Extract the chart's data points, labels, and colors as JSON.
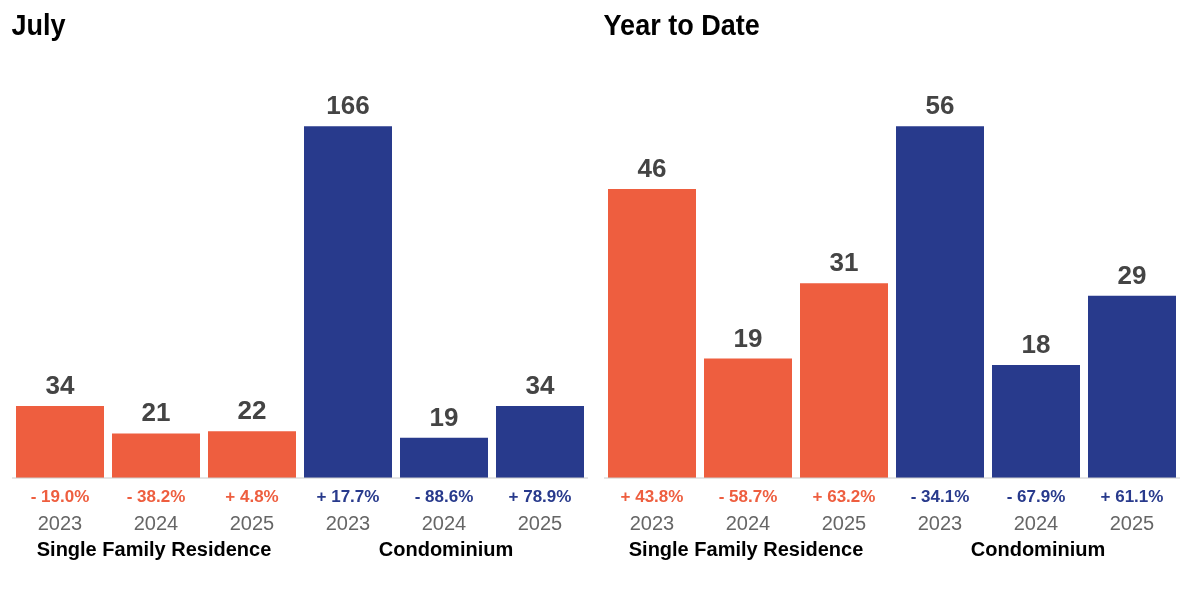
{
  "chart_data": [
    {
      "type": "bar",
      "title": "July",
      "categories": [
        "2023",
        "2024",
        "2025",
        "2023",
        "2024",
        "2025"
      ],
      "values": [
        34,
        21,
        22,
        166,
        19,
        34
      ],
      "colors": [
        "#ee5e3f",
        "#ee5e3f",
        "#ee5e3f",
        "#283a8c",
        "#283a8c",
        "#283a8c"
      ],
      "data_labels": true,
      "annotations": [
        "- 19.0%",
        "- 38.2%",
        "+ 4.8%",
        "+ 17.7%",
        "- 88.6%",
        "+ 78.9%",
        "Single Family Residence",
        "Condominium"
      ]
    },
    {
      "type": "bar",
      "title": "Year to Date",
      "categories": [
        "2023",
        "2024",
        "2025",
        "2023",
        "2024",
        "2025"
      ],
      "values": [
        46,
        19,
        31,
        56,
        18,
        29
      ],
      "colors": [
        "#ee5e3f",
        "#ee5e3f",
        "#ee5e3f",
        "#283a8c",
        "#283a8c",
        "#283a8c"
      ],
      "data_labels": true,
      "annotations": [
        "+ 43.8%",
        "- 58.7%",
        "+ 63.2%",
        "- 34.1%",
        "- 67.9%",
        "+ 61.1%",
        "Single Family Residence",
        "Condominium"
      ]
    }
  ]
}
